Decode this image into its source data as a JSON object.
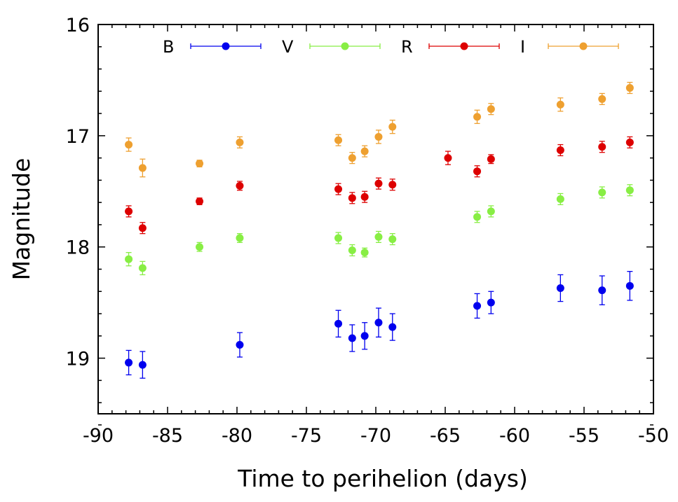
{
  "chart_data": {
    "type": "scatter",
    "title": "",
    "xlabel": "Time to perihelion (days)",
    "ylabel": "Magnitude",
    "xlim": [
      -90,
      -50
    ],
    "ylim": [
      16,
      19.5
    ],
    "y_inverted": true,
    "grid": false,
    "legend_position": "top",
    "x_ticks": [
      -90,
      -85,
      -80,
      -75,
      -70,
      -65,
      -60,
      -55,
      -50
    ],
    "x_tick_labels": [
      "-90",
      "-85",
      "-80",
      "-75",
      "-70",
      "-65",
      "-60",
      "-55",
      "-50"
    ],
    "y_ticks": [
      16,
      17,
      18,
      19
    ],
    "y_tick_labels": [
      "16",
      "17",
      "18",
      "19"
    ],
    "series": [
      {
        "name": "B",
        "color": "#0000ee",
        "x": [
          -87.8,
          -86.8,
          -79.8,
          -72.7,
          -71.7,
          -70.8,
          -69.8,
          -68.8,
          -62.7,
          -61.7,
          -56.7,
          -53.7,
          -51.7
        ],
        "y": [
          19.04,
          19.06,
          18.88,
          18.69,
          18.82,
          18.8,
          18.68,
          18.72,
          18.53,
          18.5,
          18.37,
          18.39,
          18.35
        ],
        "err": [
          0.11,
          0.12,
          0.11,
          0.12,
          0.12,
          0.12,
          0.13,
          0.12,
          0.11,
          0.1,
          0.12,
          0.13,
          0.13
        ]
      },
      {
        "name": "V",
        "color": "#88ee44",
        "x": [
          -87.8,
          -86.8,
          -82.7,
          -79.8,
          -72.7,
          -71.7,
          -70.8,
          -69.8,
          -68.8,
          -62.7,
          -61.7,
          -56.7,
          -53.7,
          -51.7
        ],
        "y": [
          18.11,
          18.19,
          18.0,
          17.92,
          17.92,
          18.03,
          18.05,
          17.91,
          17.93,
          17.73,
          17.68,
          17.57,
          17.51,
          17.49
        ],
        "err": [
          0.06,
          0.06,
          0.04,
          0.04,
          0.05,
          0.05,
          0.04,
          0.05,
          0.05,
          0.05,
          0.05,
          0.05,
          0.05,
          0.05
        ]
      },
      {
        "name": "R",
        "color": "#dd0000",
        "x": [
          -87.8,
          -86.8,
          -82.7,
          -79.8,
          -72.7,
          -71.7,
          -70.8,
          -69.8,
          -68.8,
          -64.8,
          -62.7,
          -61.7,
          -56.7,
          -53.7,
          -51.7
        ],
        "y": [
          17.68,
          17.83,
          17.59,
          17.45,
          17.48,
          17.56,
          17.55,
          17.43,
          17.44,
          17.2,
          17.32,
          17.21,
          17.13,
          17.1,
          17.06
        ],
        "err": [
          0.05,
          0.05,
          0.03,
          0.04,
          0.05,
          0.05,
          0.05,
          0.05,
          0.05,
          0.06,
          0.05,
          0.04,
          0.05,
          0.05,
          0.05
        ]
      },
      {
        "name": "I",
        "color": "#eea030",
        "x": [
          -87.8,
          -86.8,
          -82.7,
          -79.8,
          -72.7,
          -71.7,
          -70.8,
          -69.8,
          -68.8,
          -62.7,
          -61.7,
          -56.7,
          -53.7,
          -51.7
        ],
        "y": [
          17.08,
          17.29,
          17.25,
          17.06,
          17.04,
          17.2,
          17.14,
          17.01,
          16.92,
          16.83,
          16.76,
          16.72,
          16.67,
          16.57
        ],
        "err": [
          0.06,
          0.08,
          0.03,
          0.05,
          0.05,
          0.05,
          0.05,
          0.06,
          0.06,
          0.06,
          0.05,
          0.06,
          0.05,
          0.05
        ]
      }
    ]
  }
}
